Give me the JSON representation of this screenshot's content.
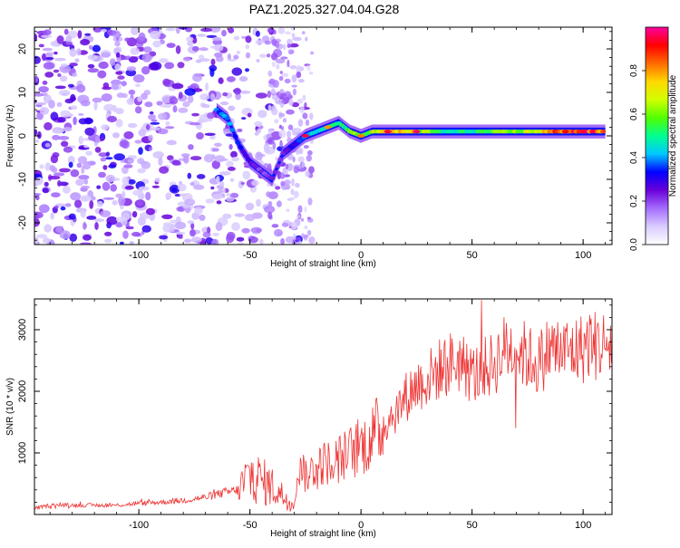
{
  "chart_data": [
    {
      "type": "heatmap",
      "title": "PAZ1.2025.327.04.04.G28",
      "xlabel": "Height of straight line (km)",
      "ylabel": "Frequency (Hz)",
      "xlim": [
        -147,
        113
      ],
      "ylim": [
        -25,
        25
      ],
      "xticks": [
        -100,
        -50,
        0,
        50,
        100
      ],
      "yticks": [
        -20,
        -10,
        0,
        10,
        20
      ],
      "colorbar": {
        "label": "Normalized spectral amplitude",
        "range": [
          0,
          1
        ],
        "ticks": [
          "0.0",
          "0.2",
          "0.4",
          "0.6",
          "0.8"
        ],
        "tick_values": [
          0,
          0.2,
          0.4,
          0.6,
          0.8
        ],
        "colors": [
          "#ffffff",
          "#d9ccff",
          "#a46cff",
          "#6a00d8",
          "#0000ff",
          "#00c8ff",
          "#00ff90",
          "#52ff00",
          "#d2ff00",
          "#ffd800",
          "#ff6a00",
          "#ff0000",
          "#ff00a0"
        ]
      },
      "ridge": {
        "description_free": true,
        "x": [
          -65,
          -60,
          -55,
          -50,
          -45,
          -40,
          -35,
          -30,
          -25,
          -20,
          -15,
          -10,
          -5,
          0,
          5,
          10,
          20,
          30,
          40,
          50,
          60,
          70,
          80,
          90,
          100,
          110
        ],
        "y": [
          6,
          4,
          -2,
          -6,
          -8,
          -10,
          -4,
          -2,
          0,
          1,
          2,
          3,
          1,
          0,
          1,
          1,
          1,
          1,
          1,
          1,
          1,
          1,
          1,
          1,
          1,
          1
        ],
        "amplitude": [
          0.35,
          0.4,
          0.3,
          0.25,
          0.2,
          0.2,
          0.25,
          0.3,
          0.35,
          0.45,
          0.5,
          0.5,
          0.55,
          0.6,
          0.65,
          0.7,
          0.75,
          0.6,
          0.45,
          0.5,
          0.55,
          0.6,
          0.7,
          0.85,
          0.9,
          0.8
        ]
      }
    },
    {
      "type": "line",
      "xlabel": "Height of straight line (km)",
      "ylabel": "SNR (10 * v/v)",
      "xlim": [
        -147,
        113
      ],
      "ylim": [
        0,
        3500
      ],
      "xticks": [
        -100,
        -50,
        0,
        50,
        100
      ],
      "yticks": [
        1000,
        2000,
        3000
      ],
      "series": [
        {
          "name": "SNR",
          "color": "#ee3333",
          "x": [
            -147,
            -140,
            -130,
            -120,
            -110,
            -100,
            -90,
            -80,
            -70,
            -62,
            -55,
            -50,
            -45,
            -40,
            -35,
            -30,
            -27,
            -25,
            -20,
            -15,
            -10,
            -5,
            0,
            5,
            10,
            15,
            20,
            25,
            30,
            35,
            40,
            45,
            50,
            55,
            60,
            65,
            70,
            75,
            80,
            85,
            90,
            95,
            100,
            103,
            105,
            107,
            110,
            113
          ],
          "y": [
            100,
            150,
            150,
            150,
            150,
            180,
            200,
            230,
            280,
            350,
            400,
            650,
            550,
            450,
            300,
            200,
            900,
            600,
            800,
            850,
            900,
            1000,
            1100,
            1250,
            1450,
            1650,
            1900,
            2100,
            2200,
            2350,
            2450,
            2500,
            2250,
            2350,
            2450,
            2700,
            2700,
            2550,
            2450,
            2700,
            2650,
            2650,
            2700,
            2800,
            2750,
            2750,
            2750,
            2750
          ]
        }
      ]
    }
  ]
}
